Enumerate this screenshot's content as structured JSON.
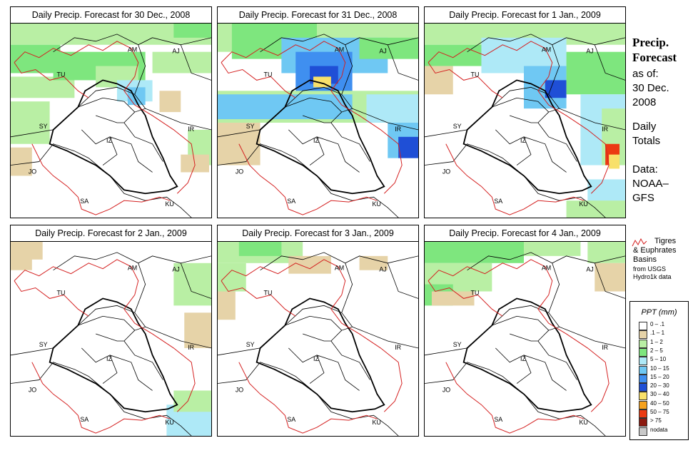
{
  "panels": [
    {
      "title": "Daily Precip. Forecast for  30 Dec., 2008"
    },
    {
      "title": "Daily Precip. Forecast for  31 Dec., 2008"
    },
    {
      "title": "Daily Precip. Forecast for  1 Jan., 2009"
    },
    {
      "title": "Daily Precip. Forecast for  2 Jan., 2009"
    },
    {
      "title": "Daily Precip. Forecast for  3 Jan., 2009"
    },
    {
      "title": "Daily Precip. Forecast for  4 Jan., 2009"
    }
  ],
  "country_labels": [
    "AM",
    "AJ",
    "TU",
    "SY",
    "IR",
    "IZ",
    "JO",
    "SA",
    "KU"
  ],
  "sidebar": {
    "heading1": "Precip.",
    "heading2": "Forecast",
    "asof_label": "as of:",
    "date1": "30 Dec.",
    "date2": "2008",
    "daily1": "Daily",
    "daily2": "Totals",
    "data1": "Data:",
    "data2": "NOAA–",
    "data3": "GFS"
  },
  "basin_note": {
    "line1": "Tigres",
    "line2": "& Euphrates",
    "line3": "Basins",
    "line4": "from USGS",
    "line5": "Hydro1k data"
  },
  "legend": {
    "title": "PPT (mm)",
    "items": [
      {
        "label": "0 – .1",
        "color": "#ffffff"
      },
      {
        "label": ".1 – 1",
        "color": "#e6d3a8"
      },
      {
        "label": "1 – 2",
        "color": "#b9efa4"
      },
      {
        "label": "2 – 5",
        "color": "#7ee67e"
      },
      {
        "label": "5 – 10",
        "color": "#aee9f7"
      },
      {
        "label": "10 – 15",
        "color": "#6fc8f3"
      },
      {
        "label": "15 – 20",
        "color": "#3f8ff0"
      },
      {
        "label": "20 – 30",
        "color": "#1f4fd6"
      },
      {
        "label": "30 – 40",
        "color": "#f8e06a"
      },
      {
        "label": "40 – 50",
        "color": "#f6a21e"
      },
      {
        "label": "50 – 75",
        "color": "#ec3a12"
      },
      {
        "label": "> 75",
        "color": "#8c1a10"
      },
      {
        "label": "nodata",
        "color": "#c8c8c8"
      }
    ]
  }
}
